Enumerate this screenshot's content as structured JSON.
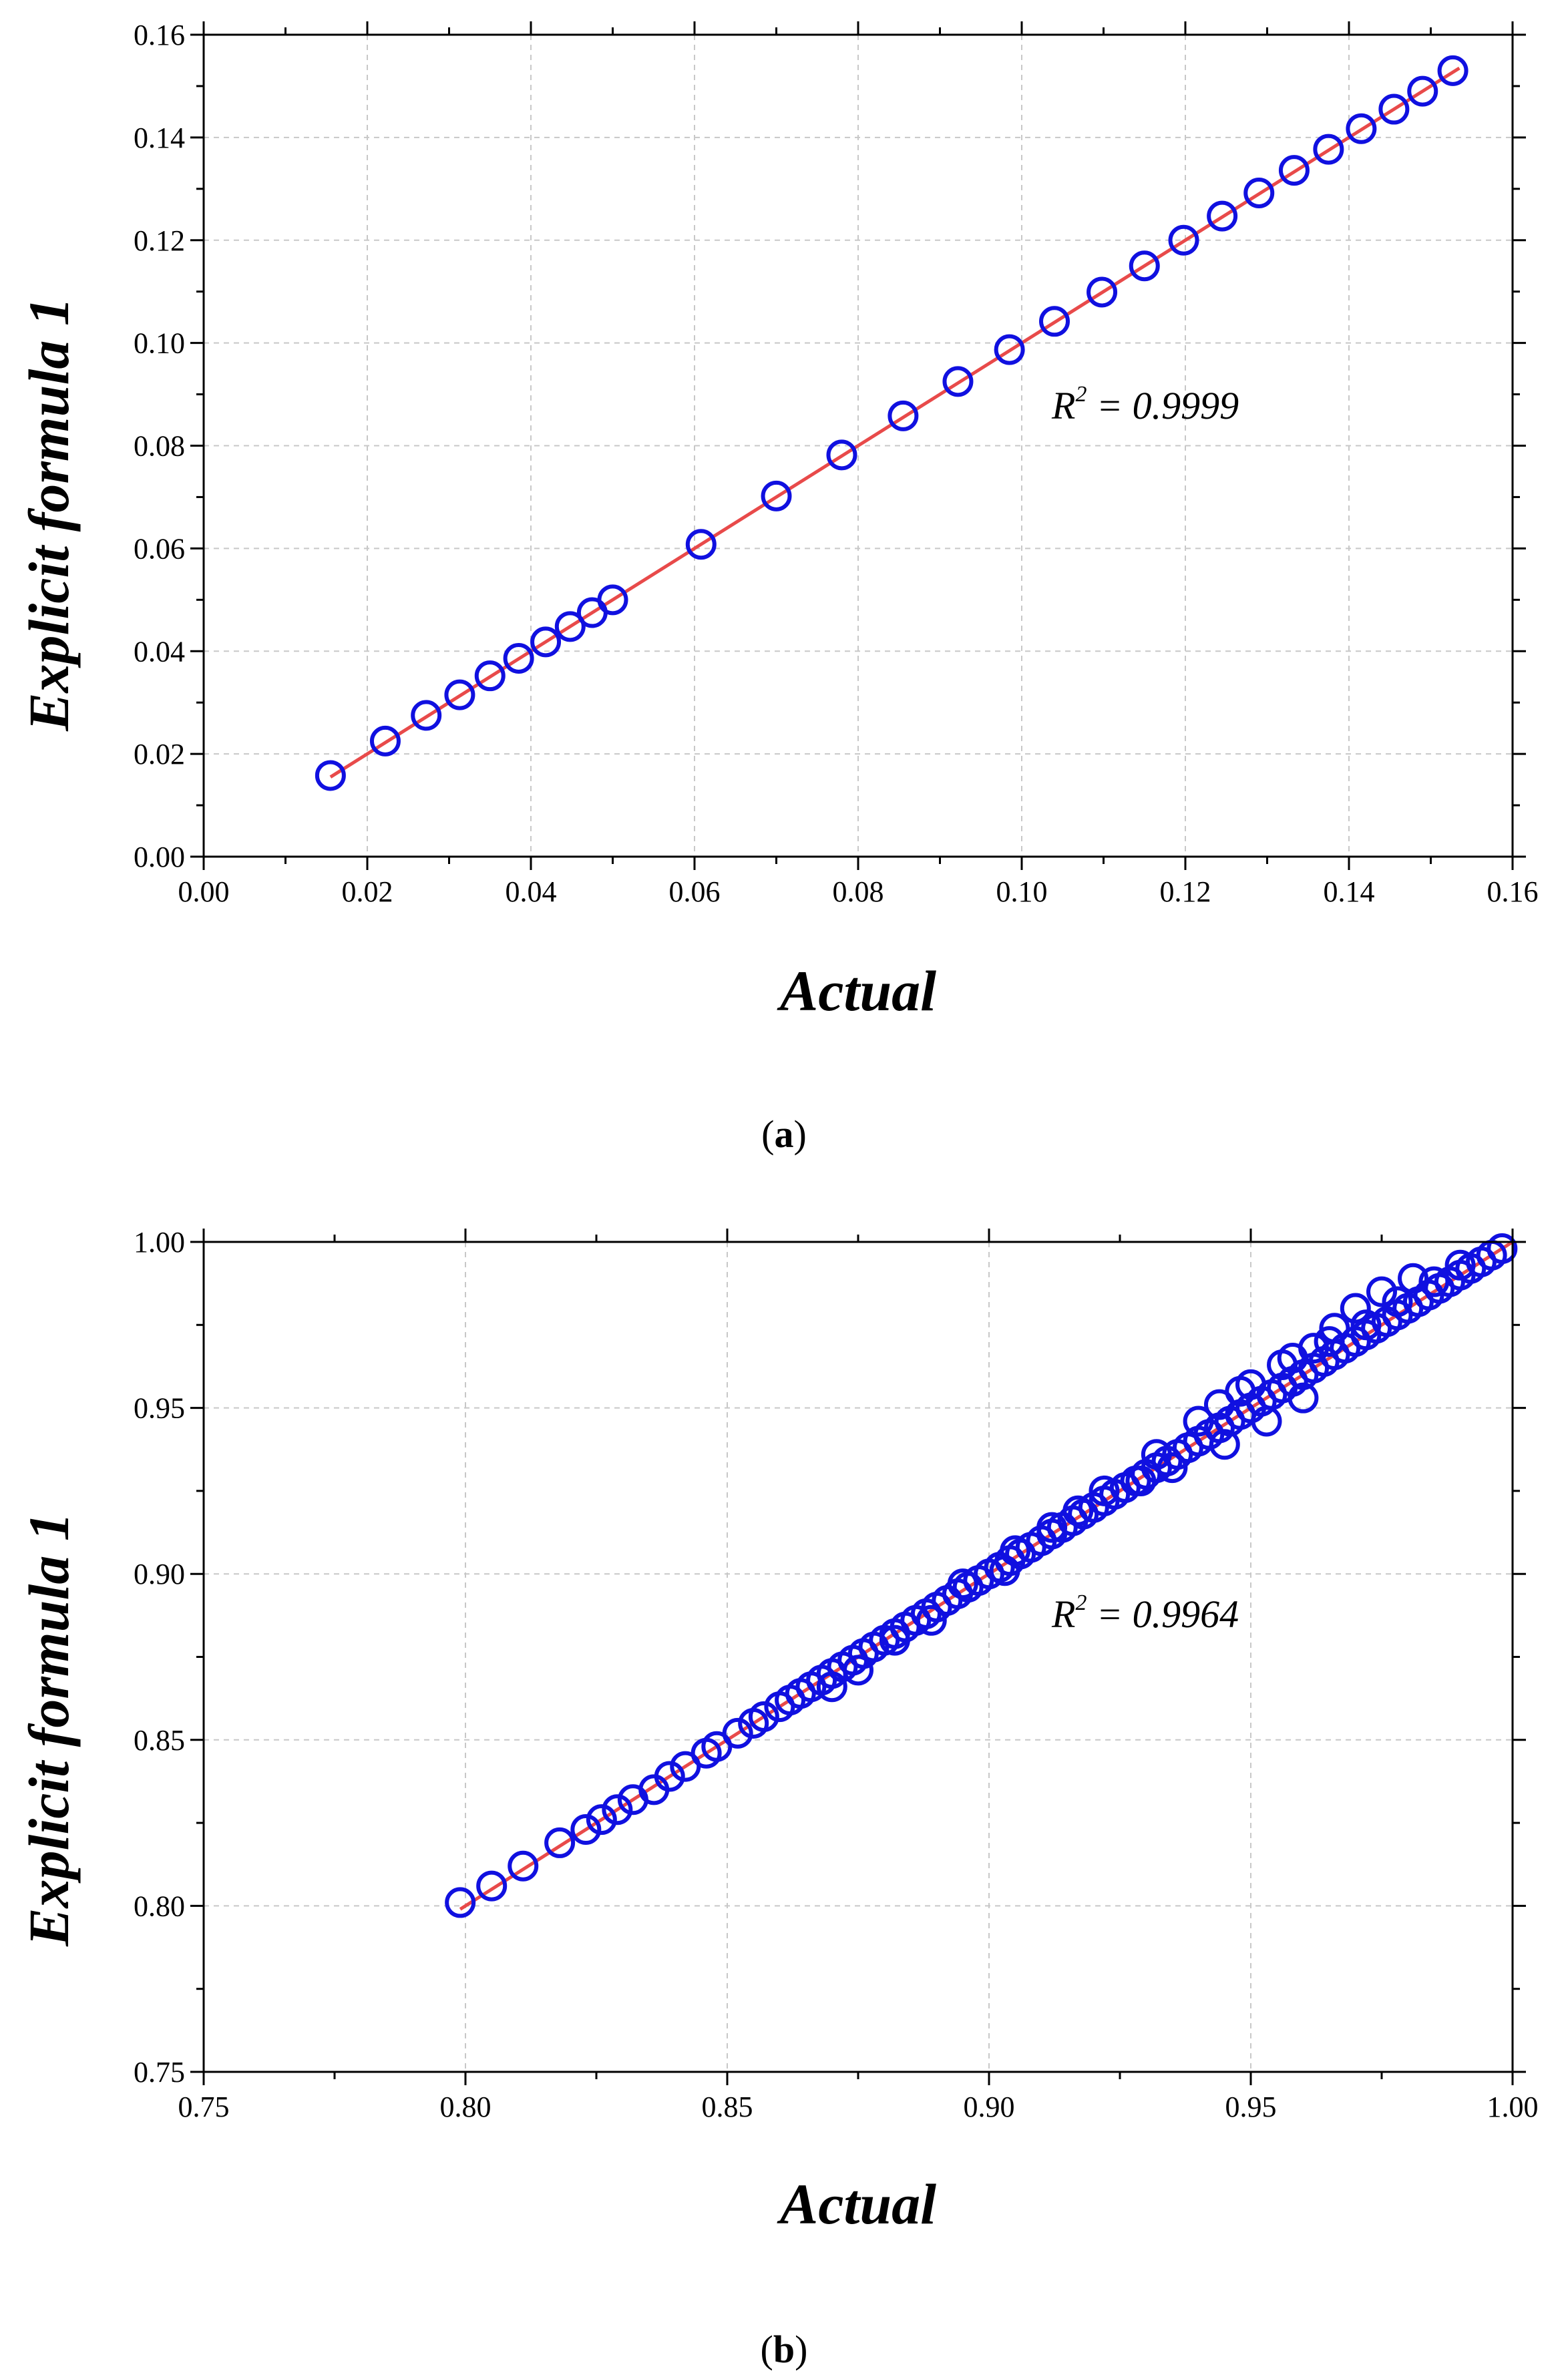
{
  "chart_data": [
    {
      "type": "scatter",
      "panel_label": "a",
      "xlabel": "Actual",
      "ylabel": "Explicit formula 1",
      "xlim": [
        0.0,
        0.16
      ],
      "ylim": [
        0.0,
        0.16
      ],
      "xticks": [
        0.0,
        0.02,
        0.04,
        0.06,
        0.08,
        0.1,
        0.12,
        0.14,
        0.16
      ],
      "yticks": [
        0.0,
        0.02,
        0.04,
        0.06,
        0.08,
        0.1,
        0.12,
        0.14,
        0.16
      ],
      "xtick_labels": [
        "0.00",
        "0.02",
        "0.04",
        "0.06",
        "0.08",
        "0.10",
        "0.12",
        "0.14",
        "0.16"
      ],
      "ytick_labels": [
        "0.00",
        "0.02",
        "0.04",
        "0.06",
        "0.08",
        "0.10",
        "0.12",
        "0.14",
        "0.16"
      ],
      "grid": true,
      "annotation": {
        "prefix": "R",
        "superscript": "2",
        "text": " = 0.9999"
      },
      "series": [
        {
          "name": "data",
          "style": "open-circle",
          "color": "#1010e0",
          "x": [
            0.0155,
            0.0222,
            0.0272,
            0.0313,
            0.035,
            0.0385,
            0.0418,
            0.0448,
            0.0475,
            0.05,
            0.0608,
            0.07,
            0.078,
            0.0855,
            0.0922,
            0.0985,
            0.104,
            0.1098,
            0.115,
            0.1198,
            0.1245,
            0.129,
            0.1333,
            0.1375,
            0.1415,
            0.1455,
            0.149,
            0.1527
          ],
          "y": [
            0.0158,
            0.0225,
            0.0275,
            0.0315,
            0.0352,
            0.0386,
            0.0418,
            0.0448,
            0.0475,
            0.05,
            0.0608,
            0.0702,
            0.0782,
            0.0858,
            0.0925,
            0.0987,
            0.1042,
            0.1099,
            0.115,
            0.12,
            0.1247,
            0.1292,
            0.1336,
            0.1377,
            0.1417,
            0.1455,
            0.149,
            0.153
          ]
        },
        {
          "name": "fit",
          "style": "line",
          "color": "#e84a4a",
          "x": [
            0.0155,
            0.1535
          ],
          "y": [
            0.0155,
            0.1535
          ]
        }
      ]
    },
    {
      "type": "scatter",
      "panel_label": "b",
      "xlabel": "Actual",
      "ylabel": "Explicit formula 1",
      "xlim": [
        0.75,
        1.0
      ],
      "ylim": [
        0.75,
        1.0
      ],
      "xticks": [
        0.75,
        0.8,
        0.85,
        0.9,
        0.95,
        1.0
      ],
      "yticks": [
        0.75,
        0.8,
        0.85,
        0.9,
        0.95,
        1.0
      ],
      "xtick_labels": [
        "0.75",
        "0.80",
        "0.85",
        "0.90",
        "0.95",
        "1.00"
      ],
      "ytick_labels": [
        "0.75",
        "0.80",
        "0.85",
        "0.90",
        "0.95",
        "1.00"
      ],
      "grid": true,
      "annotation": {
        "prefix": "R",
        "superscript": "2",
        "text": " = 0.9964"
      },
      "series": [
        {
          "name": "data",
          "style": "open-circle",
          "color": "#1010e0",
          "x": [
            0.799,
            0.805,
            0.811,
            0.818,
            0.823,
            0.826,
            0.829,
            0.832,
            0.836,
            0.839,
            0.842,
            0.846,
            0.848,
            0.852,
            0.855,
            0.857,
            0.86,
            0.862,
            0.864,
            0.866,
            0.868,
            0.87,
            0.872,
            0.874,
            0.876,
            0.878,
            0.88,
            0.882,
            0.884,
            0.886,
            0.888,
            0.89,
            0.892,
            0.894,
            0.896,
            0.898,
            0.9,
            0.902,
            0.904,
            0.906,
            0.908,
            0.91,
            0.912,
            0.914,
            0.916,
            0.918,
            0.92,
            0.922,
            0.924,
            0.926,
            0.928,
            0.93,
            0.932,
            0.934,
            0.936,
            0.938,
            0.94,
            0.942,
            0.944,
            0.946,
            0.948,
            0.95,
            0.952,
            0.954,
            0.956,
            0.958,
            0.96,
            0.962,
            0.964,
            0.966,
            0.968,
            0.97,
            0.972,
            0.974,
            0.976,
            0.978,
            0.98,
            0.982,
            0.984,
            0.986,
            0.988,
            0.99,
            0.992,
            0.994,
            0.996,
            0.998,
            0.87,
            0.882,
            0.895,
            0.905,
            0.912,
            0.922,
            0.932,
            0.944,
            0.95,
            0.956,
            0.962,
            0.966,
            0.97,
            0.975,
            0.981,
            0.945,
            0.953,
            0.96,
            0.935,
            0.94,
            0.948,
            0.958,
            0.965,
            0.972,
            0.978,
            0.985,
            0.99,
            0.875,
            0.889,
            0.903,
            0.917,
            0.929
          ],
          "y": [
            0.801,
            0.806,
            0.812,
            0.819,
            0.823,
            0.826,
            0.829,
            0.832,
            0.835,
            0.839,
            0.842,
            0.846,
            0.848,
            0.852,
            0.855,
            0.857,
            0.86,
            0.862,
            0.864,
            0.866,
            0.868,
            0.87,
            0.872,
            0.874,
            0.876,
            0.878,
            0.88,
            0.882,
            0.884,
            0.886,
            0.888,
            0.89,
            0.892,
            0.894,
            0.896,
            0.898,
            0.9,
            0.902,
            0.904,
            0.906,
            0.908,
            0.91,
            0.912,
            0.914,
            0.916,
            0.918,
            0.92,
            0.922,
            0.924,
            0.926,
            0.928,
            0.93,
            0.932,
            0.934,
            0.936,
            0.938,
            0.94,
            0.942,
            0.944,
            0.946,
            0.948,
            0.95,
            0.952,
            0.954,
            0.956,
            0.958,
            0.96,
            0.962,
            0.964,
            0.966,
            0.968,
            0.97,
            0.972,
            0.974,
            0.976,
            0.978,
            0.98,
            0.982,
            0.984,
            0.986,
            0.988,
            0.99,
            0.992,
            0.994,
            0.996,
            0.998,
            0.866,
            0.88,
            0.897,
            0.907,
            0.914,
            0.925,
            0.936,
            0.951,
            0.957,
            0.963,
            0.968,
            0.974,
            0.98,
            0.985,
            0.989,
            0.939,
            0.946,
            0.953,
            0.932,
            0.946,
            0.955,
            0.965,
            0.97,
            0.975,
            0.982,
            0.988,
            0.993,
            0.871,
            0.886,
            0.901,
            0.919,
            0.928
          ]
        },
        {
          "name": "fit",
          "style": "line",
          "color": "#e84a4a",
          "x": [
            0.799,
            1.0
          ],
          "y": [
            0.799,
            1.0
          ]
        }
      ]
    }
  ]
}
